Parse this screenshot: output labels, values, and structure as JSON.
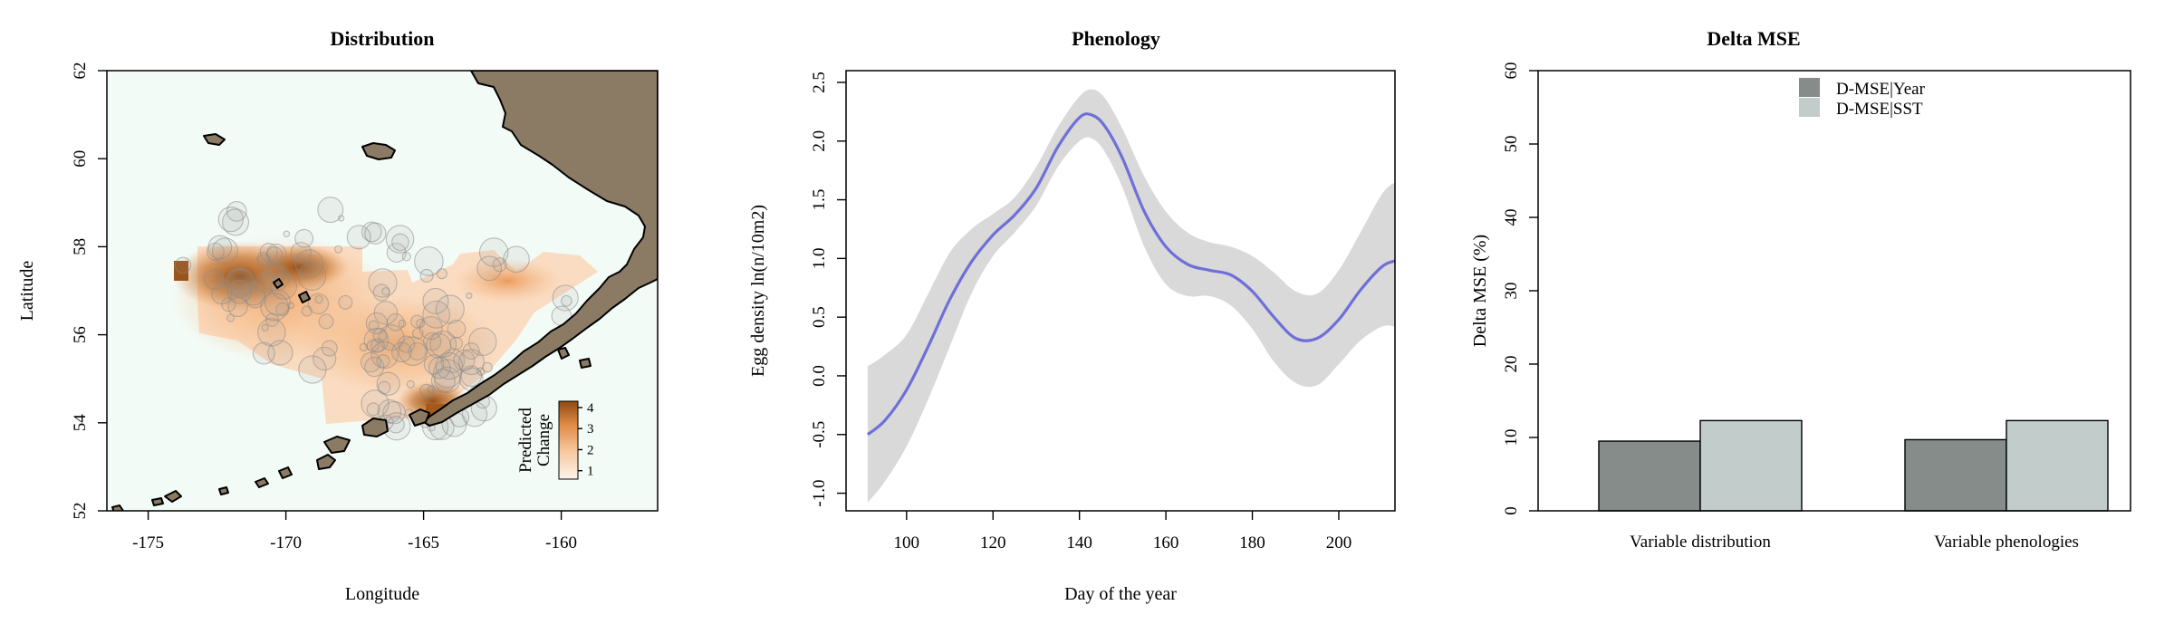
{
  "panels": {
    "distribution": {
      "title": "Distribution",
      "xlabel": "Longitude",
      "ylabel": "Latitude",
      "xticks": [
        -175,
        -170,
        -165,
        -160
      ],
      "yticks": [
        52,
        54,
        56,
        58,
        60,
        62
      ],
      "xlim": [
        -176.5,
        -156.5
      ],
      "ylim": [
        52,
        62
      ],
      "colorbar": {
        "title_lines": [
          "Predicted",
          "Change"
        ],
        "ticks": [
          1,
          2,
          3,
          4
        ],
        "range": [
          0.6,
          4.3
        ],
        "colors": [
          "#fdf3ea",
          "#f7c9a0",
          "#e08a45",
          "#8f4a10"
        ]
      },
      "colors": {
        "ocean": "#f3fbf6",
        "land": "#8b7b64"
      }
    },
    "phenology": {
      "title": "Phenology",
      "xlabel": "Day of the year",
      "ylabel": "Egg density ln(n/10m2)",
      "xticks": [
        100,
        120,
        140,
        160,
        180,
        200
      ],
      "yticks": [
        -1.0,
        -0.5,
        0.0,
        0.5,
        1.0,
        1.5,
        2.0,
        2.5
      ],
      "ytick_labels": [
        "-1.0",
        "-0.5",
        "0.0",
        "0.5",
        "1.0",
        "1.5",
        "2.0",
        "2.5"
      ],
      "xlim": [
        86,
        213
      ],
      "ylim": [
        -1.15,
        2.6
      ],
      "colors": {
        "line": "#6f6fd8",
        "band": "#d9d9d9"
      }
    },
    "delta_mse": {
      "title": "Delta MSE",
      "ylabel": "Delta MSE (%)",
      "yticks": [
        0,
        10,
        20,
        30,
        40,
        50,
        60
      ],
      "legend": [
        "D-MSE|Year",
        "D-MSE|SST"
      ],
      "colors": {
        "year": "#858c8a",
        "sst": "#c1cccb"
      }
    }
  },
  "chart_data": [
    {
      "type": "heatmap",
      "title": "Distribution",
      "xlabel": "Longitude",
      "ylabel": "Latitude",
      "xlim": [
        -176.5,
        -156.5
      ],
      "ylim": [
        52,
        62
      ],
      "legend_title": "Predicted Change",
      "legend_range": [
        1,
        4
      ],
      "hotspots": [
        {
          "lon": -172.0,
          "lat": 57.3,
          "value": 4.0
        },
        {
          "lon": -170.5,
          "lat": 57.6,
          "value": 3.4
        },
        {
          "lon": -168.0,
          "lat": 56.5,
          "value": 2.6
        },
        {
          "lon": -166.5,
          "lat": 55.6,
          "value": 2.0
        },
        {
          "lon": -164.0,
          "lat": 54.6,
          "value": 3.6
        },
        {
          "lon": -162.5,
          "lat": 57.4,
          "value": 1.6
        }
      ]
    },
    {
      "type": "line",
      "title": "Phenology",
      "xlabel": "Day of the year",
      "ylabel": "Egg density ln(n/10m2)",
      "x": [
        91,
        95,
        100,
        105,
        110,
        115,
        120,
        125,
        130,
        135,
        140,
        143,
        146,
        150,
        155,
        160,
        165,
        170,
        175,
        180,
        185,
        190,
        195,
        200,
        205,
        210,
        213
      ],
      "y": [
        -0.5,
        -0.38,
        -0.12,
        0.25,
        0.65,
        0.97,
        1.2,
        1.37,
        1.6,
        1.95,
        2.2,
        2.22,
        2.12,
        1.85,
        1.4,
        1.1,
        0.95,
        0.9,
        0.86,
        0.72,
        0.5,
        0.32,
        0.32,
        0.48,
        0.73,
        0.93,
        0.98
      ],
      "lower": [
        -1.08,
        -0.9,
        -0.6,
        -0.2,
        0.25,
        0.7,
        1.02,
        1.22,
        1.45,
        1.78,
        2.0,
        2.02,
        1.9,
        1.6,
        1.1,
        0.78,
        0.68,
        0.68,
        0.6,
        0.4,
        0.12,
        -0.06,
        -0.08,
        0.1,
        0.3,
        0.42,
        0.42
      ],
      "upper": [
        0.08,
        0.18,
        0.35,
        0.7,
        1.05,
        1.25,
        1.38,
        1.52,
        1.78,
        2.12,
        2.38,
        2.44,
        2.36,
        2.1,
        1.7,
        1.4,
        1.22,
        1.14,
        1.1,
        1.02,
        0.88,
        0.72,
        0.7,
        0.9,
        1.22,
        1.55,
        1.65
      ],
      "xlim": [
        86,
        213
      ],
      "ylim": [
        -1.15,
        2.6
      ]
    },
    {
      "type": "bar",
      "title": "Delta MSE",
      "ylabel": "Delta MSE (%)",
      "categories": [
        "Variable distribution",
        "Variable phenologies"
      ],
      "series": [
        {
          "name": "D-MSE|Year",
          "values": [
            9.5,
            9.7
          ]
        },
        {
          "name": "D-MSE|SST",
          "values": [
            12.3,
            12.3
          ]
        }
      ],
      "ylim": [
        0,
        60
      ],
      "legend_position": "top-center"
    }
  ]
}
